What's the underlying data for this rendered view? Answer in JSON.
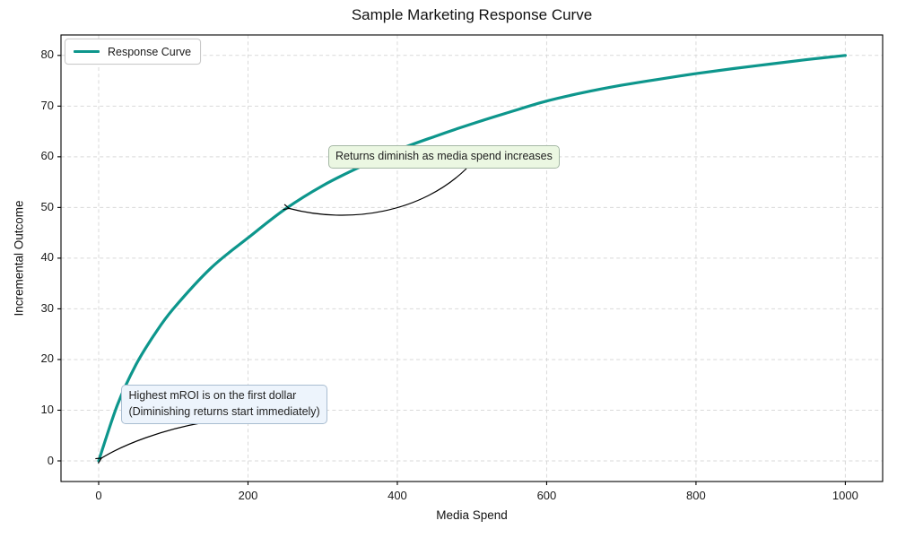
{
  "chart_data": {
    "type": "line",
    "title": "Sample Marketing Response Curve",
    "xlabel": "Media Spend",
    "ylabel": "Incremental Outcome",
    "xlim": [
      -50,
      1050
    ],
    "ylim": [
      -4,
      84
    ],
    "grid": "dashed",
    "x_ticks": [
      0,
      200,
      400,
      600,
      800,
      1000
    ],
    "y_ticks": [
      0,
      10,
      20,
      30,
      40,
      50,
      60,
      70,
      80
    ],
    "legend": {
      "position": "upper left",
      "entries": [
        {
          "label": "Response Curve",
          "color": "#0d968c"
        }
      ]
    },
    "series": [
      {
        "name": "Response Curve",
        "color": "#0d968c",
        "x": [
          0,
          25,
          50,
          75,
          100,
          150,
          200,
          250,
          300,
          350,
          400,
          450,
          500,
          550,
          600,
          650,
          700,
          750,
          800,
          850,
          900,
          950,
          1000
        ],
        "y": [
          0,
          11,
          19,
          25,
          30,
          38,
          44,
          49.7,
          54.3,
          58,
          61.3,
          64,
          66.5,
          68.8,
          71,
          72.7,
          74.1,
          75.3,
          76.4,
          77.4,
          78.3,
          79.2,
          80
        ]
      }
    ],
    "annotations": [
      {
        "id": "returns-diminish",
        "lines": [
          "Returns diminish as media spend increases"
        ],
        "style": "green",
        "xy": [
          250,
          50
        ],
        "xytext": [
          310,
          60
        ]
      },
      {
        "id": "highest-mroi",
        "lines": [
          "Highest mROI is on the first dollar",
          "(Diminishing returns start immediately)"
        ],
        "style": "blue",
        "xy": [
          0,
          0
        ],
        "xytext": [
          33,
          13
        ]
      }
    ]
  }
}
